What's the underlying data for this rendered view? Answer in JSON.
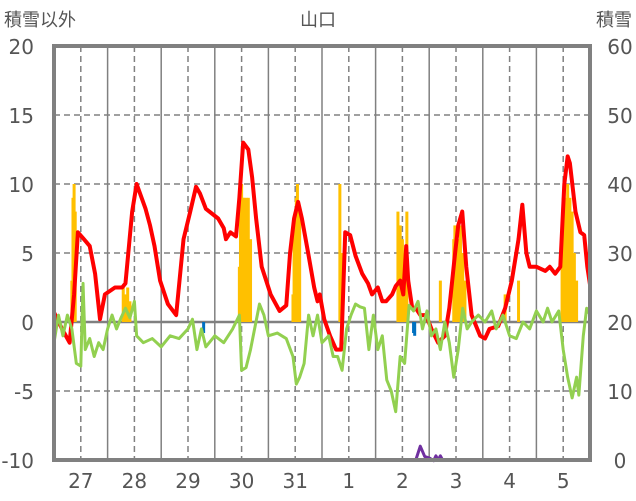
{
  "chart_data": {
    "type": "line",
    "title": "山口",
    "ylabel_left": "積雪以外",
    "ylabel_right": "積雪",
    "ylim_left": [
      -10,
      20
    ],
    "ylim_right": [
      0,
      60
    ],
    "yticks_left": [
      "20",
      "15",
      "10",
      "5",
      "0",
      "-5",
      "-10"
    ],
    "yticks_right": [
      "60",
      "50",
      "40",
      "30",
      "20",
      "10",
      "0"
    ],
    "xlim_hours": [
      0,
      240
    ],
    "x_tick_labels": [
      "27",
      "28",
      "29",
      "30",
      "31",
      "1",
      "2",
      "3",
      "4",
      "5"
    ],
    "grid": true,
    "series": [
      {
        "name": "red-line",
        "color": "#ff0000",
        "axis": "left",
        "points": [
          [
            0,
            0.7
          ],
          [
            3.6,
            -0.5
          ],
          [
            7,
            -1.5
          ],
          [
            9,
            2
          ],
          [
            10.7,
            6.5
          ],
          [
            13.4,
            6
          ],
          [
            16,
            5.5
          ],
          [
            18.4,
            3.5
          ],
          [
            20.6,
            0.2
          ],
          [
            22.8,
            2
          ],
          [
            27.3,
            2.5
          ],
          [
            30.5,
            2.5
          ],
          [
            32,
            2.8
          ],
          [
            35,
            8
          ],
          [
            37,
            10
          ],
          [
            41,
            8.2
          ],
          [
            43,
            7
          ],
          [
            45,
            5.5
          ],
          [
            47.5,
            3
          ],
          [
            51,
            1.3
          ],
          [
            54.7,
            0.5
          ],
          [
            58,
            6
          ],
          [
            61,
            8
          ],
          [
            63.6,
            9.8
          ],
          [
            65.4,
            9.3
          ],
          [
            68,
            8.2
          ],
          [
            73.5,
            7.5
          ],
          [
            76,
            6.8
          ],
          [
            77,
            6
          ],
          [
            79,
            6.5
          ],
          [
            81.5,
            6.2
          ],
          [
            83,
            9
          ],
          [
            84.7,
            13
          ],
          [
            87,
            12.5
          ],
          [
            88.7,
            10.5
          ],
          [
            90.5,
            7.5
          ],
          [
            93,
            4
          ],
          [
            97,
            2
          ],
          [
            101,
            0.8
          ],
          [
            104,
            1.2
          ],
          [
            105.7,
            5
          ],
          [
            107.5,
            7.5
          ],
          [
            109.3,
            8.7
          ],
          [
            111,
            7.5
          ],
          [
            113.8,
            5
          ],
          [
            116.5,
            2.5
          ],
          [
            118,
            1.5
          ],
          [
            119,
            2
          ],
          [
            121,
            0.2
          ],
          [
            123.6,
            -1
          ],
          [
            126.3,
            -2
          ],
          [
            128.6,
            -2
          ],
          [
            130.4,
            6.5
          ],
          [
            132.6,
            6.3
          ],
          [
            135,
            4.8
          ],
          [
            138,
            3.5
          ],
          [
            140.6,
            2.8
          ],
          [
            142.4,
            2
          ],
          [
            145,
            2.5
          ],
          [
            147,
            1.5
          ],
          [
            148.7,
            1.5
          ],
          [
            151.4,
            2
          ],
          [
            153,
            2.6
          ],
          [
            155,
            3
          ],
          [
            156.4,
            2
          ],
          [
            157.7,
            5.5
          ],
          [
            158.6,
            3
          ],
          [
            160.4,
            1
          ],
          [
            162,
            1
          ],
          [
            164,
            0.5
          ],
          [
            166.6,
            0.5
          ],
          [
            169,
            -0.5
          ],
          [
            172,
            -1.5
          ],
          [
            175,
            -1
          ],
          [
            177,
            1
          ],
          [
            179.6,
            5
          ],
          [
            181,
            7
          ],
          [
            182.8,
            8
          ],
          [
            184.6,
            4
          ],
          [
            187,
            0.5
          ],
          [
            190.8,
            -1
          ],
          [
            193,
            -1.2
          ],
          [
            195,
            -0.5
          ],
          [
            198.9,
            -0.3
          ],
          [
            202,
            1
          ],
          [
            205,
            3
          ],
          [
            208,
            6
          ],
          [
            209.7,
            8.5
          ],
          [
            211.5,
            5
          ],
          [
            213,
            4
          ],
          [
            216,
            4
          ],
          [
            220,
            3.7
          ],
          [
            222,
            4
          ],
          [
            224.4,
            3.5
          ],
          [
            226.7,
            4
          ],
          [
            228.5,
            10
          ],
          [
            230,
            12
          ],
          [
            231,
            11.5
          ],
          [
            233.5,
            8
          ],
          [
            235.7,
            6.5
          ],
          [
            237.4,
            6.3
          ],
          [
            238.8,
            4
          ],
          [
            240,
            2.7
          ]
        ]
      },
      {
        "name": "green-line",
        "color": "#92d050",
        "axis": "left",
        "points": [
          [
            0,
            -1.5
          ],
          [
            2,
            0.5
          ],
          [
            4,
            -1
          ],
          [
            6,
            0.5
          ],
          [
            8,
            -0.5
          ],
          [
            10,
            -3
          ],
          [
            12,
            -3.2
          ],
          [
            13,
            2.8
          ],
          [
            14,
            -2
          ],
          [
            16,
            -1.2
          ],
          [
            18,
            -2.5
          ],
          [
            20,
            -1.5
          ],
          [
            22,
            -2
          ],
          [
            24,
            -0.5
          ],
          [
            26,
            0.5
          ],
          [
            28,
            -0.5
          ],
          [
            30,
            0.3
          ],
          [
            32,
            1
          ],
          [
            34,
            0.3
          ],
          [
            36,
            1.5
          ],
          [
            37,
            -1
          ],
          [
            40,
            -1.5
          ],
          [
            44,
            -1.2
          ],
          [
            48,
            -1.8
          ],
          [
            52,
            -1
          ],
          [
            56,
            -1.2
          ],
          [
            60,
            -0.5
          ],
          [
            62,
            0.2
          ],
          [
            64,
            -2
          ],
          [
            66,
            -0.5
          ],
          [
            68,
            -1.8
          ],
          [
            72,
            -1
          ],
          [
            76,
            -1.5
          ],
          [
            80,
            -0.5
          ],
          [
            83,
            0.5
          ],
          [
            84,
            -3.5
          ],
          [
            86,
            -3.3
          ],
          [
            88,
            -2
          ],
          [
            92,
            1.3
          ],
          [
            94,
            0.5
          ],
          [
            96,
            -1
          ],
          [
            100,
            -0.8
          ],
          [
            104,
            -1.2
          ],
          [
            107,
            -2.5
          ],
          [
            108.5,
            -4.5
          ],
          [
            110,
            -4
          ],
          [
            112,
            -3
          ],
          [
            114,
            0.5
          ],
          [
            116,
            -1
          ],
          [
            118,
            0.5
          ],
          [
            120,
            -1.5
          ],
          [
            123,
            -1
          ],
          [
            125,
            -2.5
          ],
          [
            127,
            -2.5
          ],
          [
            129,
            -3.5
          ],
          [
            131,
            -0.5
          ],
          [
            133,
            0.5
          ],
          [
            135,
            1.3
          ],
          [
            137,
            1.1
          ],
          [
            139,
            1
          ],
          [
            141,
            -2
          ],
          [
            143,
            0.5
          ],
          [
            145,
            -2
          ],
          [
            147,
            -1
          ],
          [
            149,
            -4.2
          ],
          [
            151,
            -5
          ],
          [
            153,
            -6.5
          ],
          [
            155,
            -2.5
          ],
          [
            157,
            -3
          ],
          [
            159,
            1.2
          ],
          [
            161,
            0.8
          ],
          [
            163,
            1.5
          ],
          [
            165,
            -0.5
          ],
          [
            167,
            0.8
          ],
          [
            169,
            -1
          ],
          [
            171,
            -0.5
          ],
          [
            173,
            -2
          ],
          [
            175,
            0
          ],
          [
            177,
            -1.5
          ],
          [
            179,
            -4
          ],
          [
            181,
            -2
          ],
          [
            183,
            1
          ],
          [
            185,
            -0.5
          ],
          [
            187,
            0
          ],
          [
            190,
            0.5
          ],
          [
            193,
            0
          ],
          [
            196,
            0.8
          ],
          [
            198,
            -0.5
          ],
          [
            201,
            0.5
          ],
          [
            204,
            -1
          ],
          [
            207,
            -1.2
          ],
          [
            210,
            0
          ],
          [
            213,
            -0.5
          ],
          [
            216,
            0.8
          ],
          [
            219,
            0
          ],
          [
            221,
            1
          ],
          [
            223,
            0
          ],
          [
            226,
            0.8
          ],
          [
            228,
            -2
          ],
          [
            230,
            -4
          ],
          [
            232,
            -5.5
          ],
          [
            234,
            -4
          ],
          [
            235,
            -5.3
          ],
          [
            237,
            -1
          ],
          [
            238.5,
            1
          ],
          [
            240,
            0.5
          ]
        ]
      },
      {
        "name": "purple-line",
        "color": "#7030a0",
        "axis": "right",
        "points": [
          [
            0,
            0
          ],
          [
            162,
            0
          ],
          [
            164,
            2
          ],
          [
            166,
            0.5
          ],
          [
            168,
            0.3
          ],
          [
            170,
            -0.1
          ],
          [
            171,
            0.6
          ],
          [
            172,
            0
          ],
          [
            173,
            0.6
          ],
          [
            174,
            0
          ],
          [
            240,
            0
          ]
        ]
      }
    ],
    "bars": [
      {
        "name": "orange-bars",
        "color": "#ffc000",
        "axis": "left",
        "points": [
          [
            8,
            3
          ],
          [
            8.5,
            9
          ],
          [
            9,
            10
          ],
          [
            9.5,
            8
          ],
          [
            31,
            2.5
          ],
          [
            32,
            2
          ],
          [
            33,
            2.5
          ],
          [
            34,
            1.5
          ],
          [
            83,
            4
          ],
          [
            83.5,
            9
          ],
          [
            84,
            10
          ],
          [
            84.5,
            9
          ],
          [
            85,
            9
          ],
          [
            86,
            9
          ],
          [
            87,
            9
          ],
          [
            88,
            6
          ],
          [
            107,
            2
          ],
          [
            107.5,
            7
          ],
          [
            108,
            6
          ],
          [
            108.5,
            9
          ],
          [
            109,
            10
          ],
          [
            109.5,
            6
          ],
          [
            110,
            8
          ],
          [
            128,
            10
          ],
          [
            128.5,
            5
          ],
          [
            154,
            8
          ],
          [
            154.5,
            6
          ],
          [
            155,
            7
          ],
          [
            156,
            6
          ],
          [
            157,
            5
          ],
          [
            158,
            8
          ],
          [
            173,
            3
          ],
          [
            179,
            6
          ],
          [
            179.5,
            7
          ],
          [
            180,
            6
          ],
          [
            181,
            6
          ],
          [
            182,
            7
          ],
          [
            183,
            5
          ],
          [
            184,
            3
          ],
          [
            202,
            2
          ],
          [
            208,
            3
          ],
          [
            227.5,
            7
          ],
          [
            228,
            9
          ],
          [
            228.5,
            10
          ],
          [
            229,
            9
          ],
          [
            230,
            10
          ],
          [
            231,
            9
          ],
          [
            232,
            8
          ],
          [
            233,
            5
          ],
          [
            234,
            3
          ]
        ]
      },
      {
        "name": "blue-bars",
        "color": "#0070c0",
        "axis": "left",
        "points": [
          [
            67,
            -0.8
          ],
          [
            161,
            -0.8
          ],
          [
            161.5,
            -1
          ]
        ]
      }
    ]
  }
}
